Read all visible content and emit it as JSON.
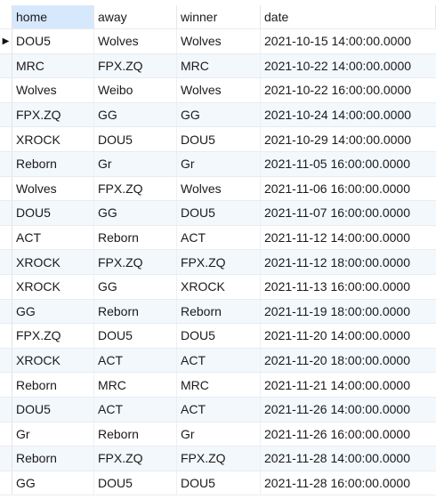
{
  "columns": [
    {
      "key": "home",
      "label": "home"
    },
    {
      "key": "away",
      "label": "away"
    },
    {
      "key": "winner",
      "label": "winner"
    },
    {
      "key": "date",
      "label": "date"
    }
  ],
  "current_row_indicator": "▶",
  "rows": [
    {
      "home": "DOU5",
      "away": "Wolves",
      "winner": "Wolves",
      "date": "2021-10-15 14:00:00.0000"
    },
    {
      "home": "MRC",
      "away": "FPX.ZQ",
      "winner": "MRC",
      "date": "2021-10-22 14:00:00.0000"
    },
    {
      "home": "Wolves",
      "away": "Weibo",
      "winner": "Wolves",
      "date": "2021-10-22 16:00:00.0000"
    },
    {
      "home": "FPX.ZQ",
      "away": "GG",
      "winner": "GG",
      "date": "2021-10-24 14:00:00.0000"
    },
    {
      "home": "XROCK",
      "away": "DOU5",
      "winner": "DOU5",
      "date": "2021-10-29 14:00:00.0000"
    },
    {
      "home": "Reborn",
      "away": "Gr",
      "winner": "Gr",
      "date": "2021-11-05 16:00:00.0000"
    },
    {
      "home": "Wolves",
      "away": "FPX.ZQ",
      "winner": "Wolves",
      "date": "2021-11-06 16:00:00.0000"
    },
    {
      "home": "DOU5",
      "away": "GG",
      "winner": "DOU5",
      "date": "2021-11-07 16:00:00.0000"
    },
    {
      "home": "ACT",
      "away": "Reborn",
      "winner": "ACT",
      "date": "2021-11-12 14:00:00.0000"
    },
    {
      "home": "XROCK",
      "away": "FPX.ZQ",
      "winner": "FPX.ZQ",
      "date": "2021-11-12 18:00:00.0000"
    },
    {
      "home": "XROCK",
      "away": "GG",
      "winner": "XROCK",
      "date": "2021-11-13 16:00:00.0000"
    },
    {
      "home": "GG",
      "away": "Reborn",
      "winner": "Reborn",
      "date": "2021-11-19 18:00:00.0000"
    },
    {
      "home": "FPX.ZQ",
      "away": "DOU5",
      "winner": "DOU5",
      "date": "2021-11-20 14:00:00.0000"
    },
    {
      "home": "XROCK",
      "away": "ACT",
      "winner": "ACT",
      "date": "2021-11-20 18:00:00.0000"
    },
    {
      "home": "Reborn",
      "away": "MRC",
      "winner": "MRC",
      "date": "2021-11-21 14:00:00.0000"
    },
    {
      "home": "DOU5",
      "away": "ACT",
      "winner": "ACT",
      "date": "2021-11-26 14:00:00.0000"
    },
    {
      "home": "Gr",
      "away": "Reborn",
      "winner": "Gr",
      "date": "2021-11-26 16:00:00.0000"
    },
    {
      "home": "Reborn",
      "away": "FPX.ZQ",
      "winner": "FPX.ZQ",
      "date": "2021-11-28 14:00:00.0000"
    },
    {
      "home": "GG",
      "away": "DOU5",
      "winner": "DOU5",
      "date": "2021-11-28 16:00:00.0000"
    }
  ],
  "colors": {
    "selected_header_bg": "#d6e8fb",
    "alt_row_bg": "#f3f8fd",
    "grid_line": "#e8ecf0"
  }
}
